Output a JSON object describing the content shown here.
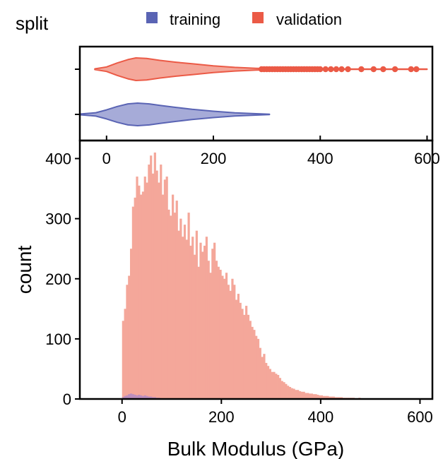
{
  "chart_data": [
    {
      "type": "violin",
      "orientation": "horizontal",
      "legend": {
        "title": "split",
        "placement": "top",
        "entries": [
          {
            "name": "training",
            "color": "#5A64B4"
          },
          {
            "name": "validation",
            "color": "#EB5A46"
          }
        ]
      },
      "xlim": [
        -50,
        610
      ],
      "xticks": [
        "0",
        "200",
        "400",
        "600"
      ],
      "xtick_values": [
        0,
        200,
        400,
        600
      ],
      "series": [
        {
          "name": "validation",
          "color": "#EB5A46",
          "fill": "#F4A79A",
          "range": [
            -22,
            600
          ],
          "profile": [
            [
              -22,
              0.03
            ],
            [
              0,
              0.2
            ],
            [
              20,
              0.55
            ],
            [
              40,
              0.85
            ],
            [
              55,
              1.0
            ],
            [
              75,
              0.95
            ],
            [
              100,
              0.78
            ],
            [
              130,
              0.62
            ],
            [
              160,
              0.48
            ],
            [
              200,
              0.3
            ],
            [
              240,
              0.16
            ],
            [
              280,
              0.08
            ],
            [
              320,
              0.04
            ],
            [
              400,
              0.02
            ],
            [
              500,
              0.015
            ],
            [
              600,
              0.01
            ]
          ],
          "outliers": [
            290,
            295,
            300,
            305,
            310,
            315,
            320,
            325,
            330,
            335,
            340,
            345,
            350,
            355,
            360,
            365,
            370,
            375,
            380,
            385,
            390,
            395,
            400,
            410,
            420,
            430,
            440,
            452,
            477,
            500,
            518,
            540,
            570,
            580
          ]
        },
        {
          "name": "training",
          "color": "#5A64B4",
          "fill": "#A6ABD8",
          "range": [
            -50,
            305
          ],
          "profile": [
            [
              -50,
              0.03
            ],
            [
              -20,
              0.15
            ],
            [
              0,
              0.4
            ],
            [
              20,
              0.7
            ],
            [
              40,
              0.93
            ],
            [
              58,
              1.0
            ],
            [
              80,
              0.93
            ],
            [
              100,
              0.8
            ],
            [
              130,
              0.62
            ],
            [
              160,
              0.45
            ],
            [
              200,
              0.28
            ],
            [
              240,
              0.14
            ],
            [
              280,
              0.06
            ],
            [
              305,
              0.02
            ]
          ],
          "outliers": []
        }
      ]
    },
    {
      "type": "bar",
      "subtype": "histogram",
      "xlabel": "Bulk Modulus (GPa)",
      "ylabel": "count",
      "xlim": [
        -85,
        625
      ],
      "ylim": [
        0,
        430
      ],
      "xticks": [
        "0",
        "200",
        "400",
        "600"
      ],
      "xtick_values": [
        0,
        200,
        400,
        600
      ],
      "yticks": [
        "0",
        "100",
        "200",
        "300",
        "400"
      ],
      "ytick_values": [
        0,
        100,
        200,
        300,
        400
      ],
      "bin_start": 0,
      "bin_width": 4,
      "series": [
        {
          "name": "validation",
          "color": "#F4A79A",
          "values": [
            130,
            150,
            190,
            205,
            250,
            320,
            335,
            370,
            355,
            340,
            345,
            370,
            360,
            390,
            405,
            375,
            410,
            380,
            360,
            390,
            340,
            365,
            370,
            315,
            305,
            340,
            310,
            330,
            280,
            300,
            270,
            290,
            265,
            310,
            255,
            270,
            240,
            280,
            220,
            260,
            245,
            255,
            270,
            230,
            210,
            250,
            260,
            230,
            220,
            215,
            205,
            200,
            210,
            190,
            180,
            200,
            190,
            165,
            175,
            160,
            150,
            140,
            155,
            140,
            130,
            120,
            115,
            105,
            100,
            85,
            70,
            75,
            60,
            55,
            50,
            45,
            45,
            42,
            40,
            35,
            30,
            28,
            25,
            22,
            20,
            18,
            17,
            15,
            15,
            13,
            12,
            12,
            10,
            10,
            9,
            9,
            8,
            8,
            7,
            6,
            6,
            5,
            5,
            5,
            4,
            4,
            4,
            3,
            3,
            3,
            3,
            2,
            2,
            2,
            2,
            2,
            2,
            1,
            1,
            2,
            1,
            1,
            1,
            1,
            1,
            1,
            1,
            1,
            1,
            1,
            1,
            1,
            1,
            1,
            1,
            1,
            1,
            1,
            1,
            1,
            1,
            1,
            1,
            1,
            1,
            1,
            1,
            1,
            1,
            1
          ]
        },
        {
          "name": "training",
          "color": "#B48BC4",
          "values": [
            3,
            5,
            6,
            8,
            9,
            8,
            7,
            6,
            7,
            6,
            5,
            6,
            5,
            4,
            4,
            3,
            3,
            2,
            2,
            1,
            1,
            1,
            1,
            1,
            1,
            1,
            1,
            1,
            1,
            1
          ]
        }
      ]
    }
  ]
}
